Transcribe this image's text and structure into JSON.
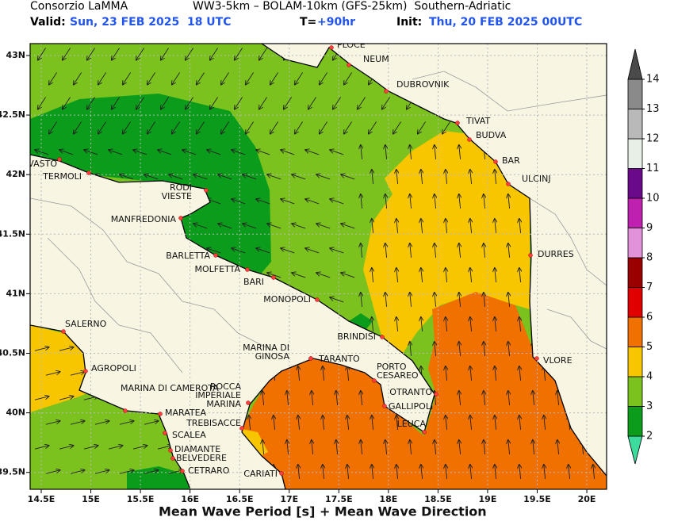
{
  "header": {
    "org": "Consorzio LaMMA",
    "model": "WW3-5km – BOLAM-10km (GFS-25km)  Southern-Adriatic",
    "valid_label": "Valid:",
    "valid": "Sun, 23 FEB 2025  18 UTC",
    "lead_label": "T=",
    "lead": "+90hr",
    "init_label": "Init:",
    "init": "Thu, 20 FEB 2025 00UTC"
  },
  "map": {
    "lat_labels": [
      "43N",
      "42.5N",
      "42N",
      "41.5N",
      "41N",
      "40.5N",
      "40N",
      "39.5N"
    ],
    "lon_labels": [
      "14.5E",
      "15E",
      "15.5E",
      "16E",
      "16.5E",
      "17E",
      "17.5E",
      "18E",
      "18.5E",
      "19E",
      "19.5E",
      "20E"
    ],
    "cities": [
      {
        "lines": [
          "PLOCE"
        ]
      },
      {
        "lines": [
          "NEUM"
        ]
      },
      {
        "lines": [
          "DUBROVNIK"
        ]
      },
      {
        "lines": [
          "TIVAT"
        ]
      },
      {
        "lines": [
          "BUDVA"
        ]
      },
      {
        "lines": [
          "BAR"
        ]
      },
      {
        "lines": [
          "ULCINJ"
        ]
      },
      {
        "lines": [
          "DURRES"
        ]
      },
      {
        "lines": [
          "VLORE"
        ]
      },
      {
        "lines": [
          "VASTO"
        ]
      },
      {
        "lines": [
          "TERMOLI"
        ]
      },
      {
        "lines": [
          "RODI",
          "VIESTE"
        ]
      },
      {
        "lines": [
          "MANFREDONIA"
        ]
      },
      {
        "lines": [
          "BARLETTA"
        ]
      },
      {
        "lines": [
          "MOLFETTA"
        ]
      },
      {
        "lines": [
          "BARI"
        ]
      },
      {
        "lines": [
          "MONOPOLI"
        ]
      },
      {
        "lines": [
          "BRINDISI"
        ]
      },
      {
        "lines": [
          "MARINA DI",
          "GINOSA"
        ]
      },
      {
        "lines": [
          "TARANTO"
        ]
      },
      {
        "lines": [
          "PORTO",
          "CESAREO"
        ]
      },
      {
        "lines": [
          "OTRANTO"
        ]
      },
      {
        "lines": [
          "GALLIPOLI"
        ]
      },
      {
        "lines": [
          "LEUCA"
        ]
      },
      {
        "lines": [
          "ROCCA",
          "IMPERIALE",
          "MARINA"
        ]
      },
      {
        "lines": [
          "TREBISACCE"
        ]
      },
      {
        "lines": [
          "SALERNO"
        ]
      },
      {
        "lines": [
          "AGROPOLI"
        ]
      },
      {
        "lines": [
          "MARINA DI CAMEROTA"
        ]
      },
      {
        "lines": [
          "MARATEA"
        ]
      },
      {
        "lines": [
          "SCALEA"
        ]
      },
      {
        "lines": [
          "DIAMANTE"
        ]
      },
      {
        "lines": [
          "BELVEDERE"
        ]
      },
      {
        "lines": [
          "CETRARO"
        ]
      },
      {
        "lines": [
          "CARIATI"
        ]
      }
    ]
  },
  "colorbar": {
    "levels": [
      2,
      3,
      4,
      5,
      6,
      7,
      8,
      9,
      10,
      11,
      12,
      13,
      14
    ],
    "colors": [
      "#3ddc9c",
      "#0b9c1c",
      "#7cc21e",
      "#f7c600",
      "#f07000",
      "#e00000",
      "#9a0000",
      "#e292d8",
      "#c020b0",
      "#6a0a8a",
      "#e8efe6",
      "#b9b9b9",
      "#8a8a8a",
      "#4a4a4a"
    ]
  },
  "footer": "Mean Wave Period [s] + Mean Wave Direction"
}
